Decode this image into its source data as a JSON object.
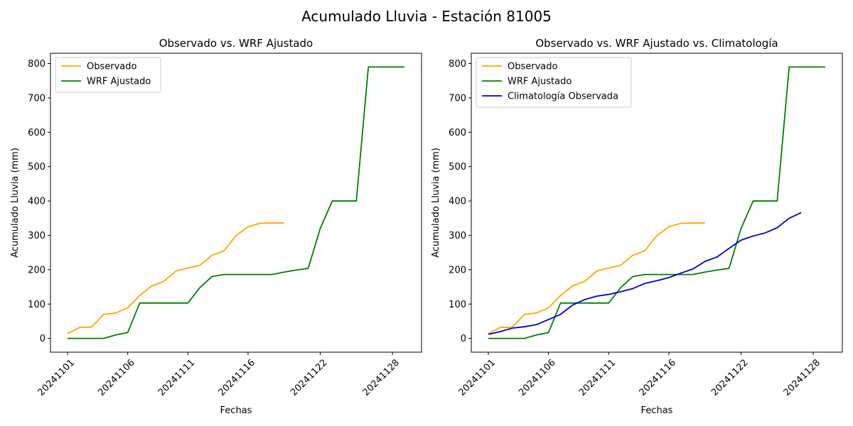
{
  "figure_title": "Acumulado Lluvia - Estación 81005",
  "colors": {
    "observado": "#ffa500",
    "wrf": "#008000",
    "climatologia": "#0000cd"
  },
  "chart_data": [
    {
      "type": "line",
      "title": "Observado vs. WRF Ajustado",
      "xlabel": "Fechas",
      "ylabel": "Acumulado Lluvia (mm)",
      "x": [
        "20241101",
        "20241102",
        "20241103",
        "20241104",
        "20241105",
        "20241106",
        "20241107",
        "20241108",
        "20241109",
        "20241110",
        "20241111",
        "20241112",
        "20241113",
        "20241114",
        "20241115",
        "20241116",
        "20241117",
        "20241118",
        "20241119",
        "20241120",
        "20241121",
        "20241122",
        "20241123",
        "20241124",
        "20241125",
        "20241126",
        "20241127",
        "20241128",
        "20241129"
      ],
      "xticks": [
        "20241101",
        "20241106",
        "20241111",
        "20241116",
        "20241122",
        "20241128"
      ],
      "yticks": [
        0,
        100,
        200,
        300,
        400,
        500,
        600,
        700,
        800
      ],
      "ylim": [
        -40,
        830
      ],
      "legend": "top-left",
      "series": [
        {
          "name": "Observado",
          "color_key": "observado",
          "values": [
            14,
            32,
            33,
            70,
            74,
            89,
            125,
            153,
            166,
            196,
            205,
            213,
            242,
            255,
            299,
            325,
            335,
            336,
            336,
            null,
            null,
            null,
            null,
            null,
            null,
            null,
            null,
            null,
            null
          ]
        },
        {
          "name": "WRF Ajustado",
          "color_key": "wrf",
          "values": [
            0,
            0,
            0,
            0,
            10,
            17,
            103,
            103,
            103,
            103,
            103,
            148,
            180,
            186,
            186,
            186,
            186,
            186,
            193,
            199,
            204,
            320,
            400,
            400,
            400,
            790,
            790,
            790,
            790
          ]
        }
      ]
    },
    {
      "type": "line",
      "title": "Observado vs. WRF Ajustado vs. Climatología",
      "xlabel": "Fechas",
      "ylabel": "Acumulado Lluvia (mm)",
      "x": [
        "20241101",
        "20241102",
        "20241103",
        "20241104",
        "20241105",
        "20241106",
        "20241107",
        "20241108",
        "20241109",
        "20241110",
        "20241111",
        "20241112",
        "20241113",
        "20241114",
        "20241115",
        "20241116",
        "20241117",
        "20241118",
        "20241119",
        "20241120",
        "20241121",
        "20241122",
        "20241123",
        "20241124",
        "20241125",
        "20241126",
        "20241127",
        "20241128",
        "20241129"
      ],
      "xticks": [
        "20241101",
        "20241106",
        "20241111",
        "20241116",
        "20241122",
        "20241128"
      ],
      "yticks": [
        0,
        100,
        200,
        300,
        400,
        500,
        600,
        700,
        800
      ],
      "ylim": [
        -40,
        830
      ],
      "legend": "top-left",
      "series": [
        {
          "name": "Observado",
          "color_key": "observado",
          "values": [
            14,
            32,
            33,
            70,
            74,
            89,
            125,
            153,
            166,
            196,
            205,
            213,
            242,
            255,
            299,
            325,
            335,
            336,
            336,
            null,
            null,
            null,
            null,
            null,
            null,
            null,
            null,
            null,
            null
          ]
        },
        {
          "name": "WRF Ajustado",
          "color_key": "wrf",
          "values": [
            0,
            0,
            0,
            0,
            10,
            17,
            103,
            103,
            103,
            103,
            103,
            148,
            180,
            186,
            186,
            186,
            186,
            186,
            193,
            199,
            204,
            320,
            400,
            400,
            400,
            790,
            790,
            790,
            790
          ]
        },
        {
          "name": "Climatología Observada",
          "color_key": "climatologia",
          "values": [
            12,
            20,
            30,
            34,
            40,
            55,
            70,
            97,
            113,
            123,
            128,
            136,
            145,
            160,
            168,
            177,
            190,
            202,
            224,
            237,
            262,
            286,
            298,
            307,
            322,
            350,
            366,
            null,
            null
          ]
        }
      ]
    }
  ]
}
